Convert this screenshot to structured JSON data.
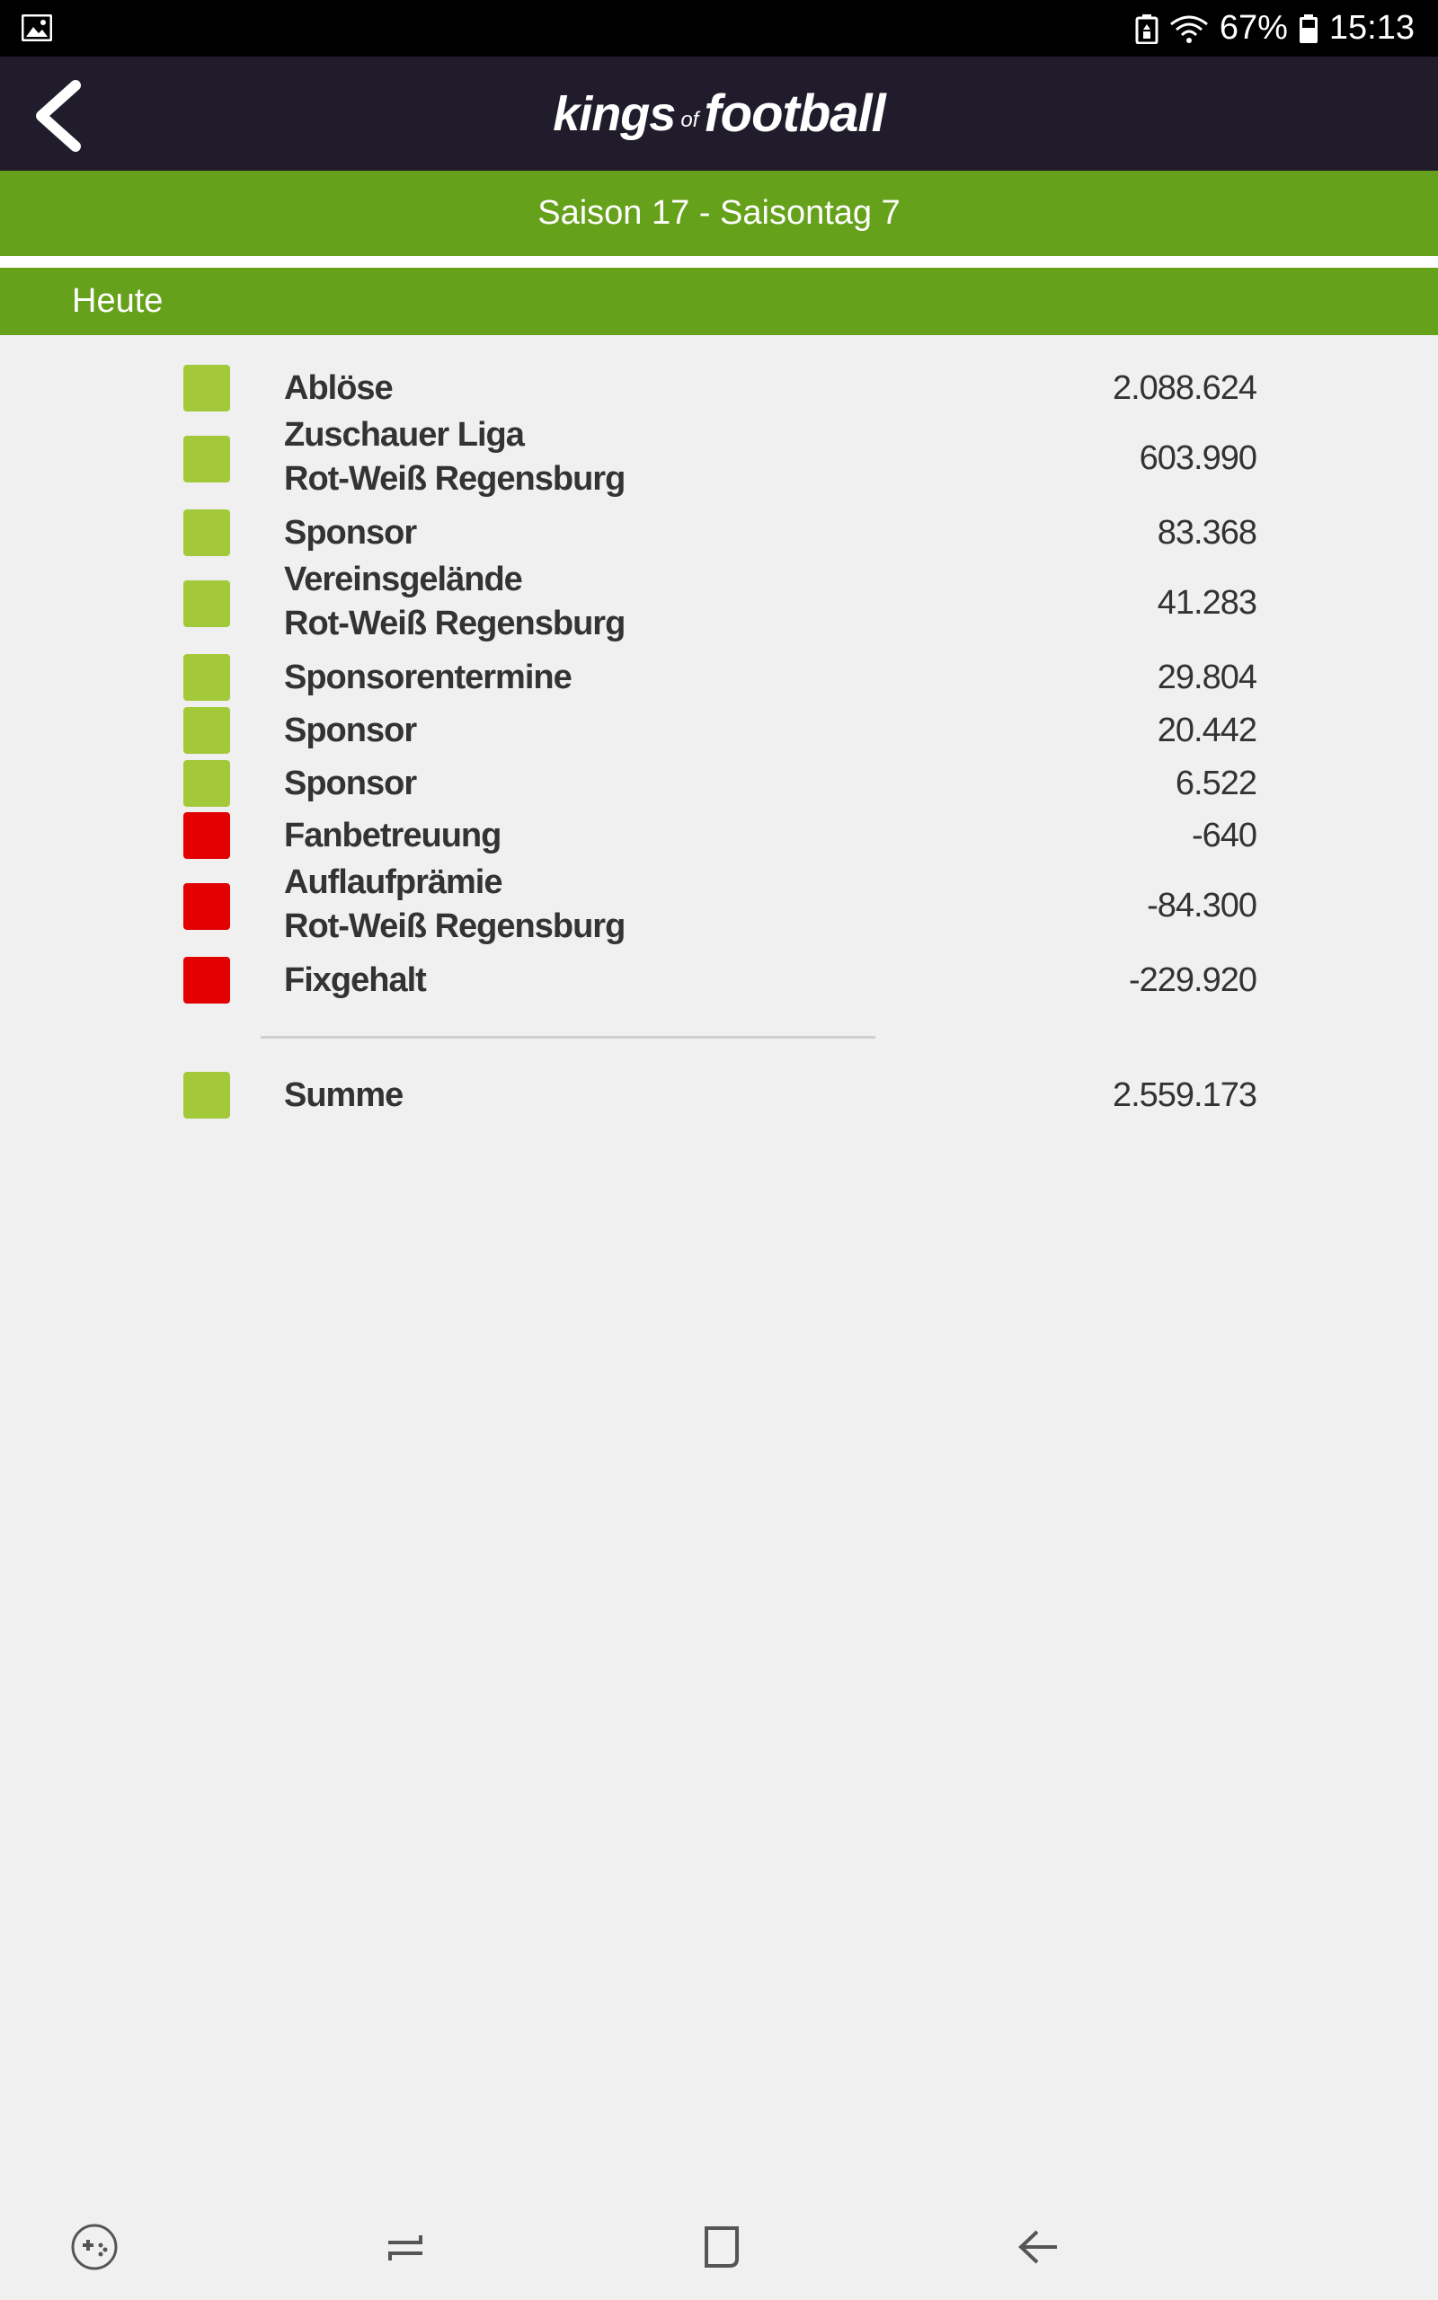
{
  "status_bar": {
    "battery": "67%",
    "time": "15:13"
  },
  "app": {
    "logo": {
      "part1": "kings",
      "part2": "of",
      "part3": "football"
    }
  },
  "season": {
    "label": "Saison 17 - Saisontag 7"
  },
  "section": {
    "label": "Heute"
  },
  "colors": {
    "positive": "#a3c93a",
    "negative": "#e20000",
    "header_green": "#65a11a",
    "appbar": "#211c2b"
  },
  "entries": [
    {
      "line1": "Ablöse",
      "line2": "",
      "value": "2.088.624",
      "type": "positive"
    },
    {
      "line1": "Zuschauer Liga",
      "line2": "Rot-Weiß Regensburg",
      "value": "603.990",
      "type": "positive"
    },
    {
      "line1": "Sponsor",
      "line2": "",
      "value": "83.368",
      "type": "positive"
    },
    {
      "line1": "Vereinsgelände",
      "line2": "Rot-Weiß Regensburg",
      "value": "41.283",
      "type": "positive"
    },
    {
      "line1": "Sponsorentermine",
      "line2": "",
      "value": "29.804",
      "type": "positive"
    },
    {
      "line1": "Sponsor",
      "line2": "",
      "value": "20.442",
      "type": "positive"
    },
    {
      "line1": "Sponsor",
      "line2": "",
      "value": "6.522",
      "type": "positive"
    },
    {
      "line1": "Fanbetreuung",
      "line2": "",
      "value": "-640",
      "type": "negative"
    },
    {
      "line1": "Auflaufprämie",
      "line2": "Rot-Weiß Regensburg",
      "value": "-84.300",
      "type": "negative"
    },
    {
      "line1": "Fixgehalt",
      "line2": "",
      "value": "-229.920",
      "type": "negative"
    }
  ],
  "total": {
    "label": "Summe",
    "value": "2.559.173",
    "type": "positive"
  },
  "icons": {
    "back": "chevron-left-icon",
    "gallery": "image-icon",
    "nav_game": "game-tools-icon",
    "nav_recents": "recents-icon",
    "nav_home": "home-icon",
    "nav_back": "back-arrow-icon"
  }
}
